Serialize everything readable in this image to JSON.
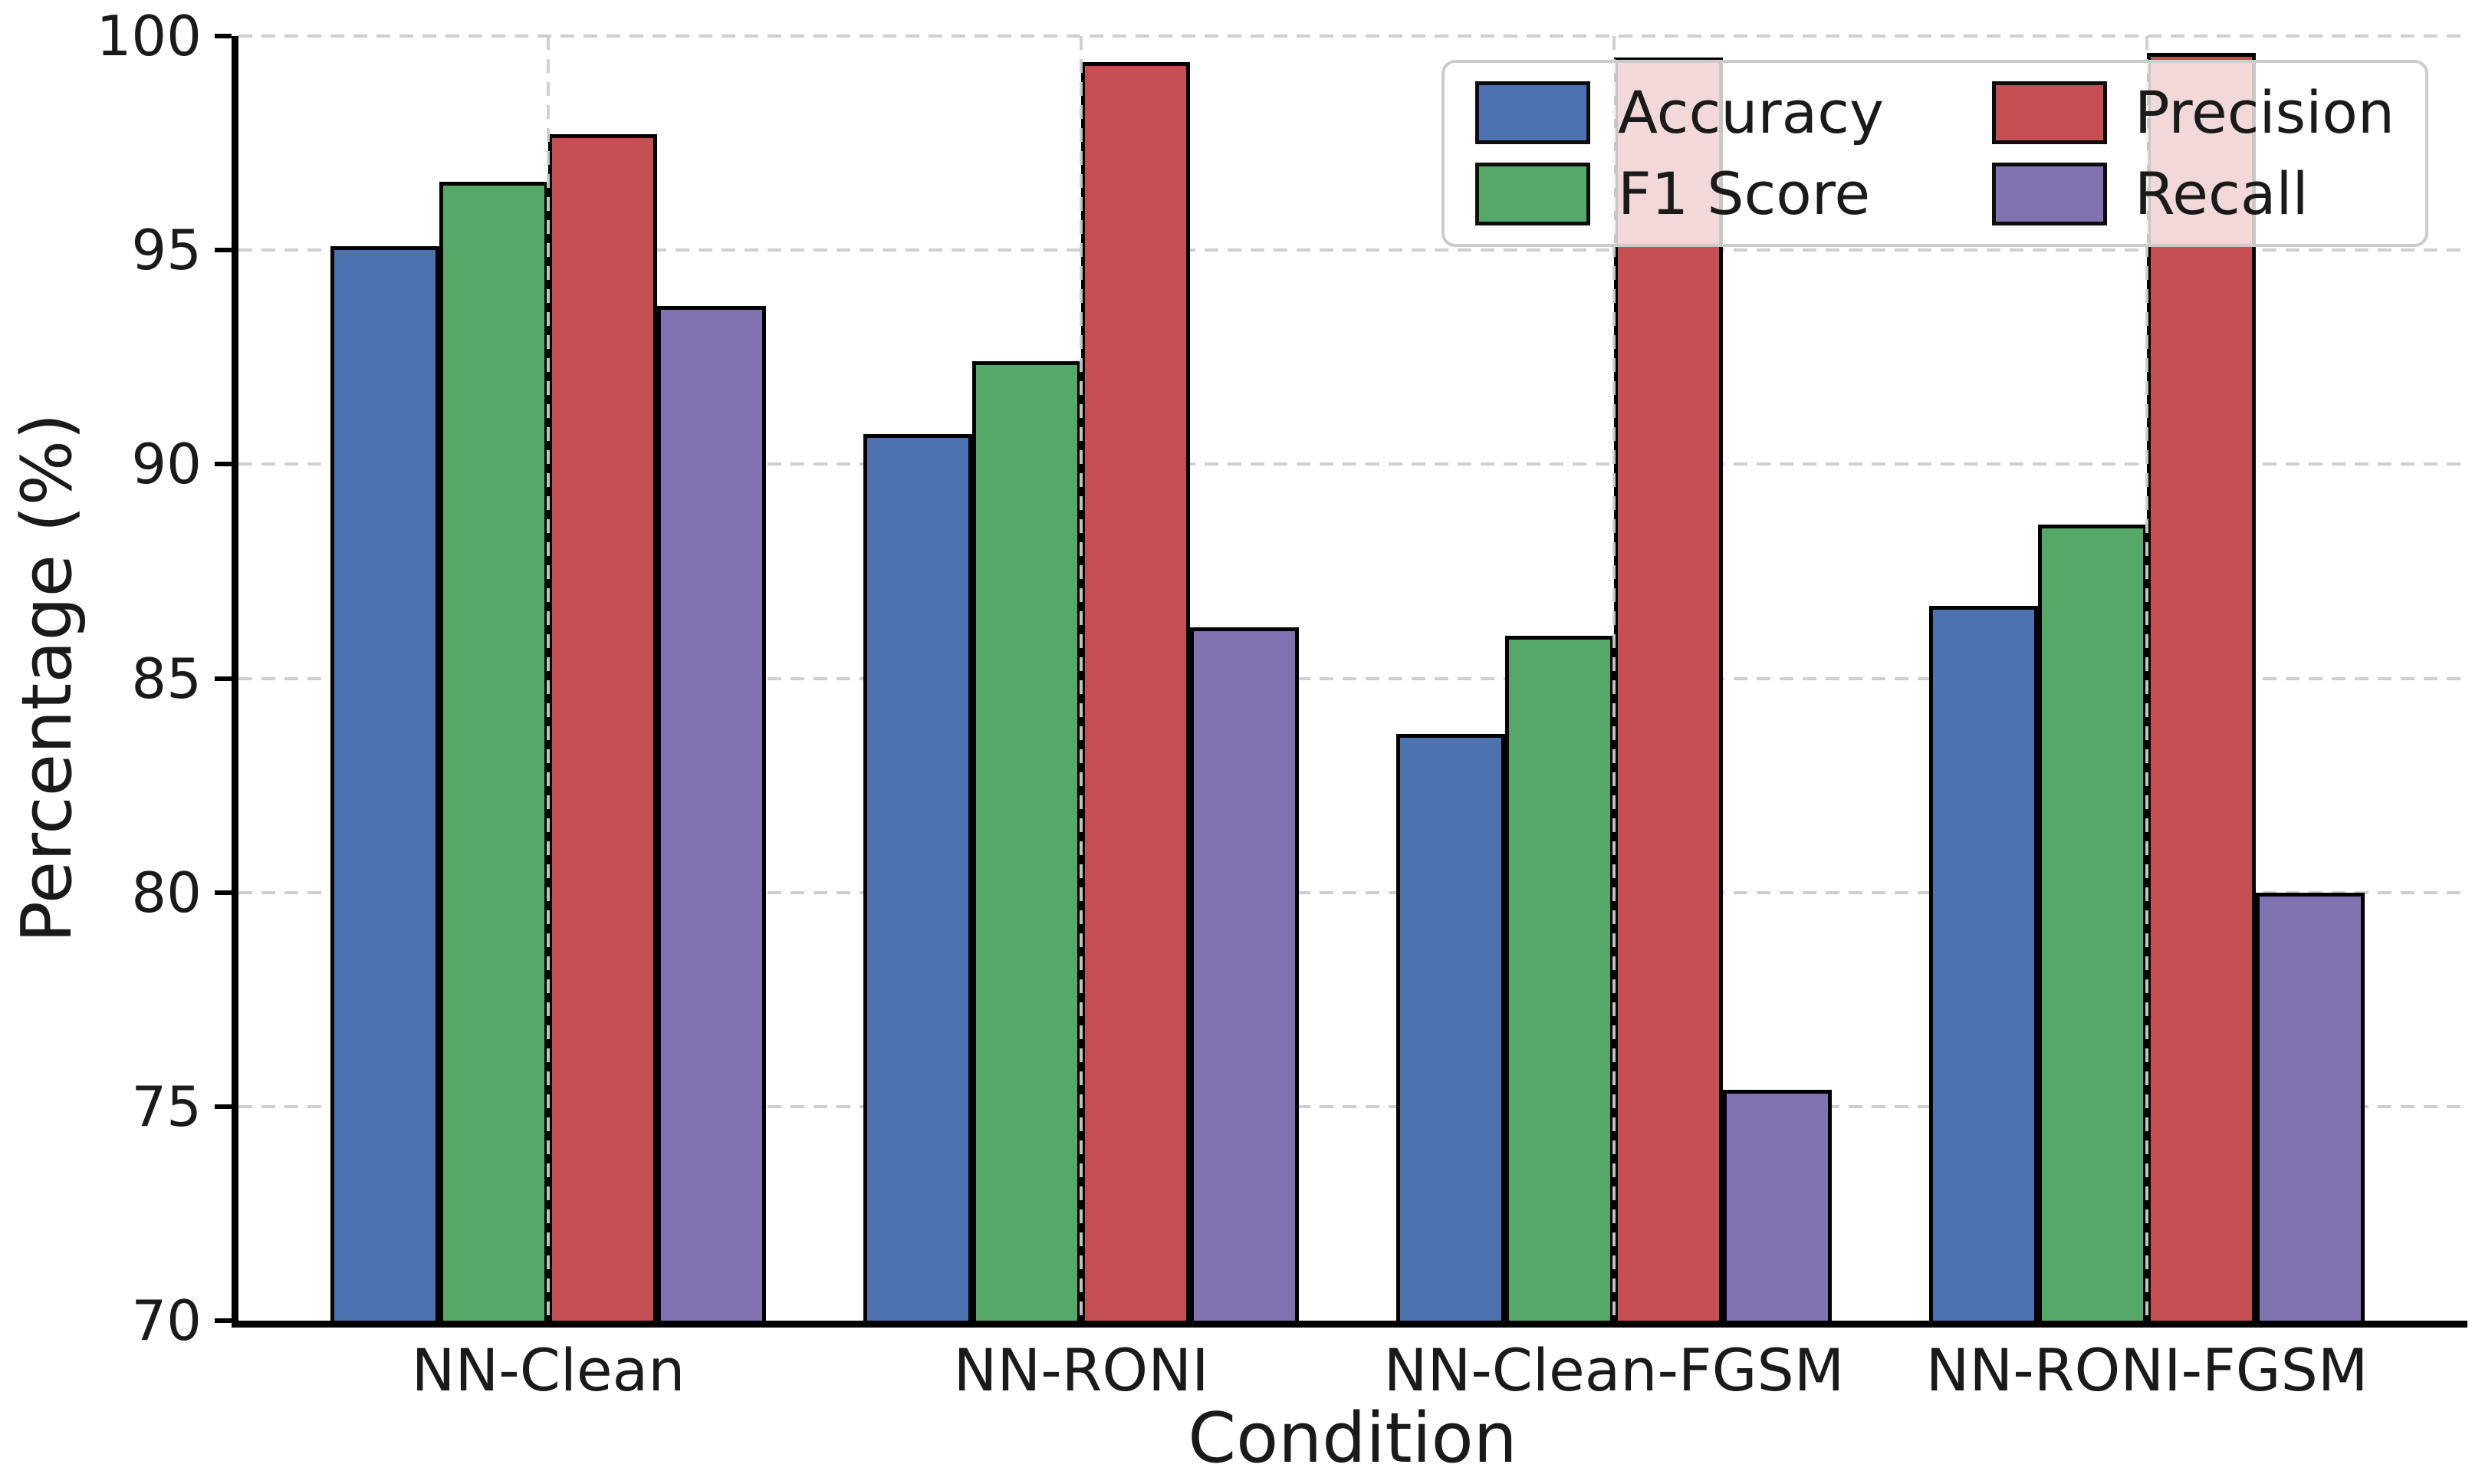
{
  "chart_data": {
    "type": "bar",
    "title": "",
    "xlabel": "Condition",
    "ylabel": "Percentage (%)",
    "ylim": [
      70,
      100
    ],
    "yticks": [
      70,
      75,
      80,
      85,
      90,
      95,
      100
    ],
    "categories": [
      "NN-Clean",
      "NN-RONI",
      "NN-Clean-FGSM",
      "NN-RONI-FGSM"
    ],
    "series": [
      {
        "name": "Accuracy",
        "color": "#4C72B0",
        "values": [
          95.1,
          90.7,
          83.7,
          86.7
        ]
      },
      {
        "name": "F1 Score",
        "color": "#55A868",
        "values": [
          96.6,
          92.4,
          86.0,
          88.6
        ]
      },
      {
        "name": "Precision",
        "color": "#C44E52",
        "values": [
          97.7,
          99.4,
          99.5,
          99.6
        ]
      },
      {
        "name": "Recall",
        "color": "#8172B2",
        "values": [
          93.7,
          86.2,
          75.4,
          80.0
        ]
      }
    ],
    "legend": {
      "position": "upper-right",
      "columns": 2,
      "entries": [
        "Accuracy",
        "F1 Score",
        "Precision",
        "Recall"
      ]
    },
    "grid": {
      "show": true,
      "color": "#cccccc",
      "style": "dashed"
    },
    "styles": {
      "bar_edge_color": "#000000",
      "spine_color": "#000000",
      "text_color": "#1a1a1a",
      "legend_background": "rgba(255,255,255,0.78)",
      "legend_border": "#cccccc"
    }
  }
}
